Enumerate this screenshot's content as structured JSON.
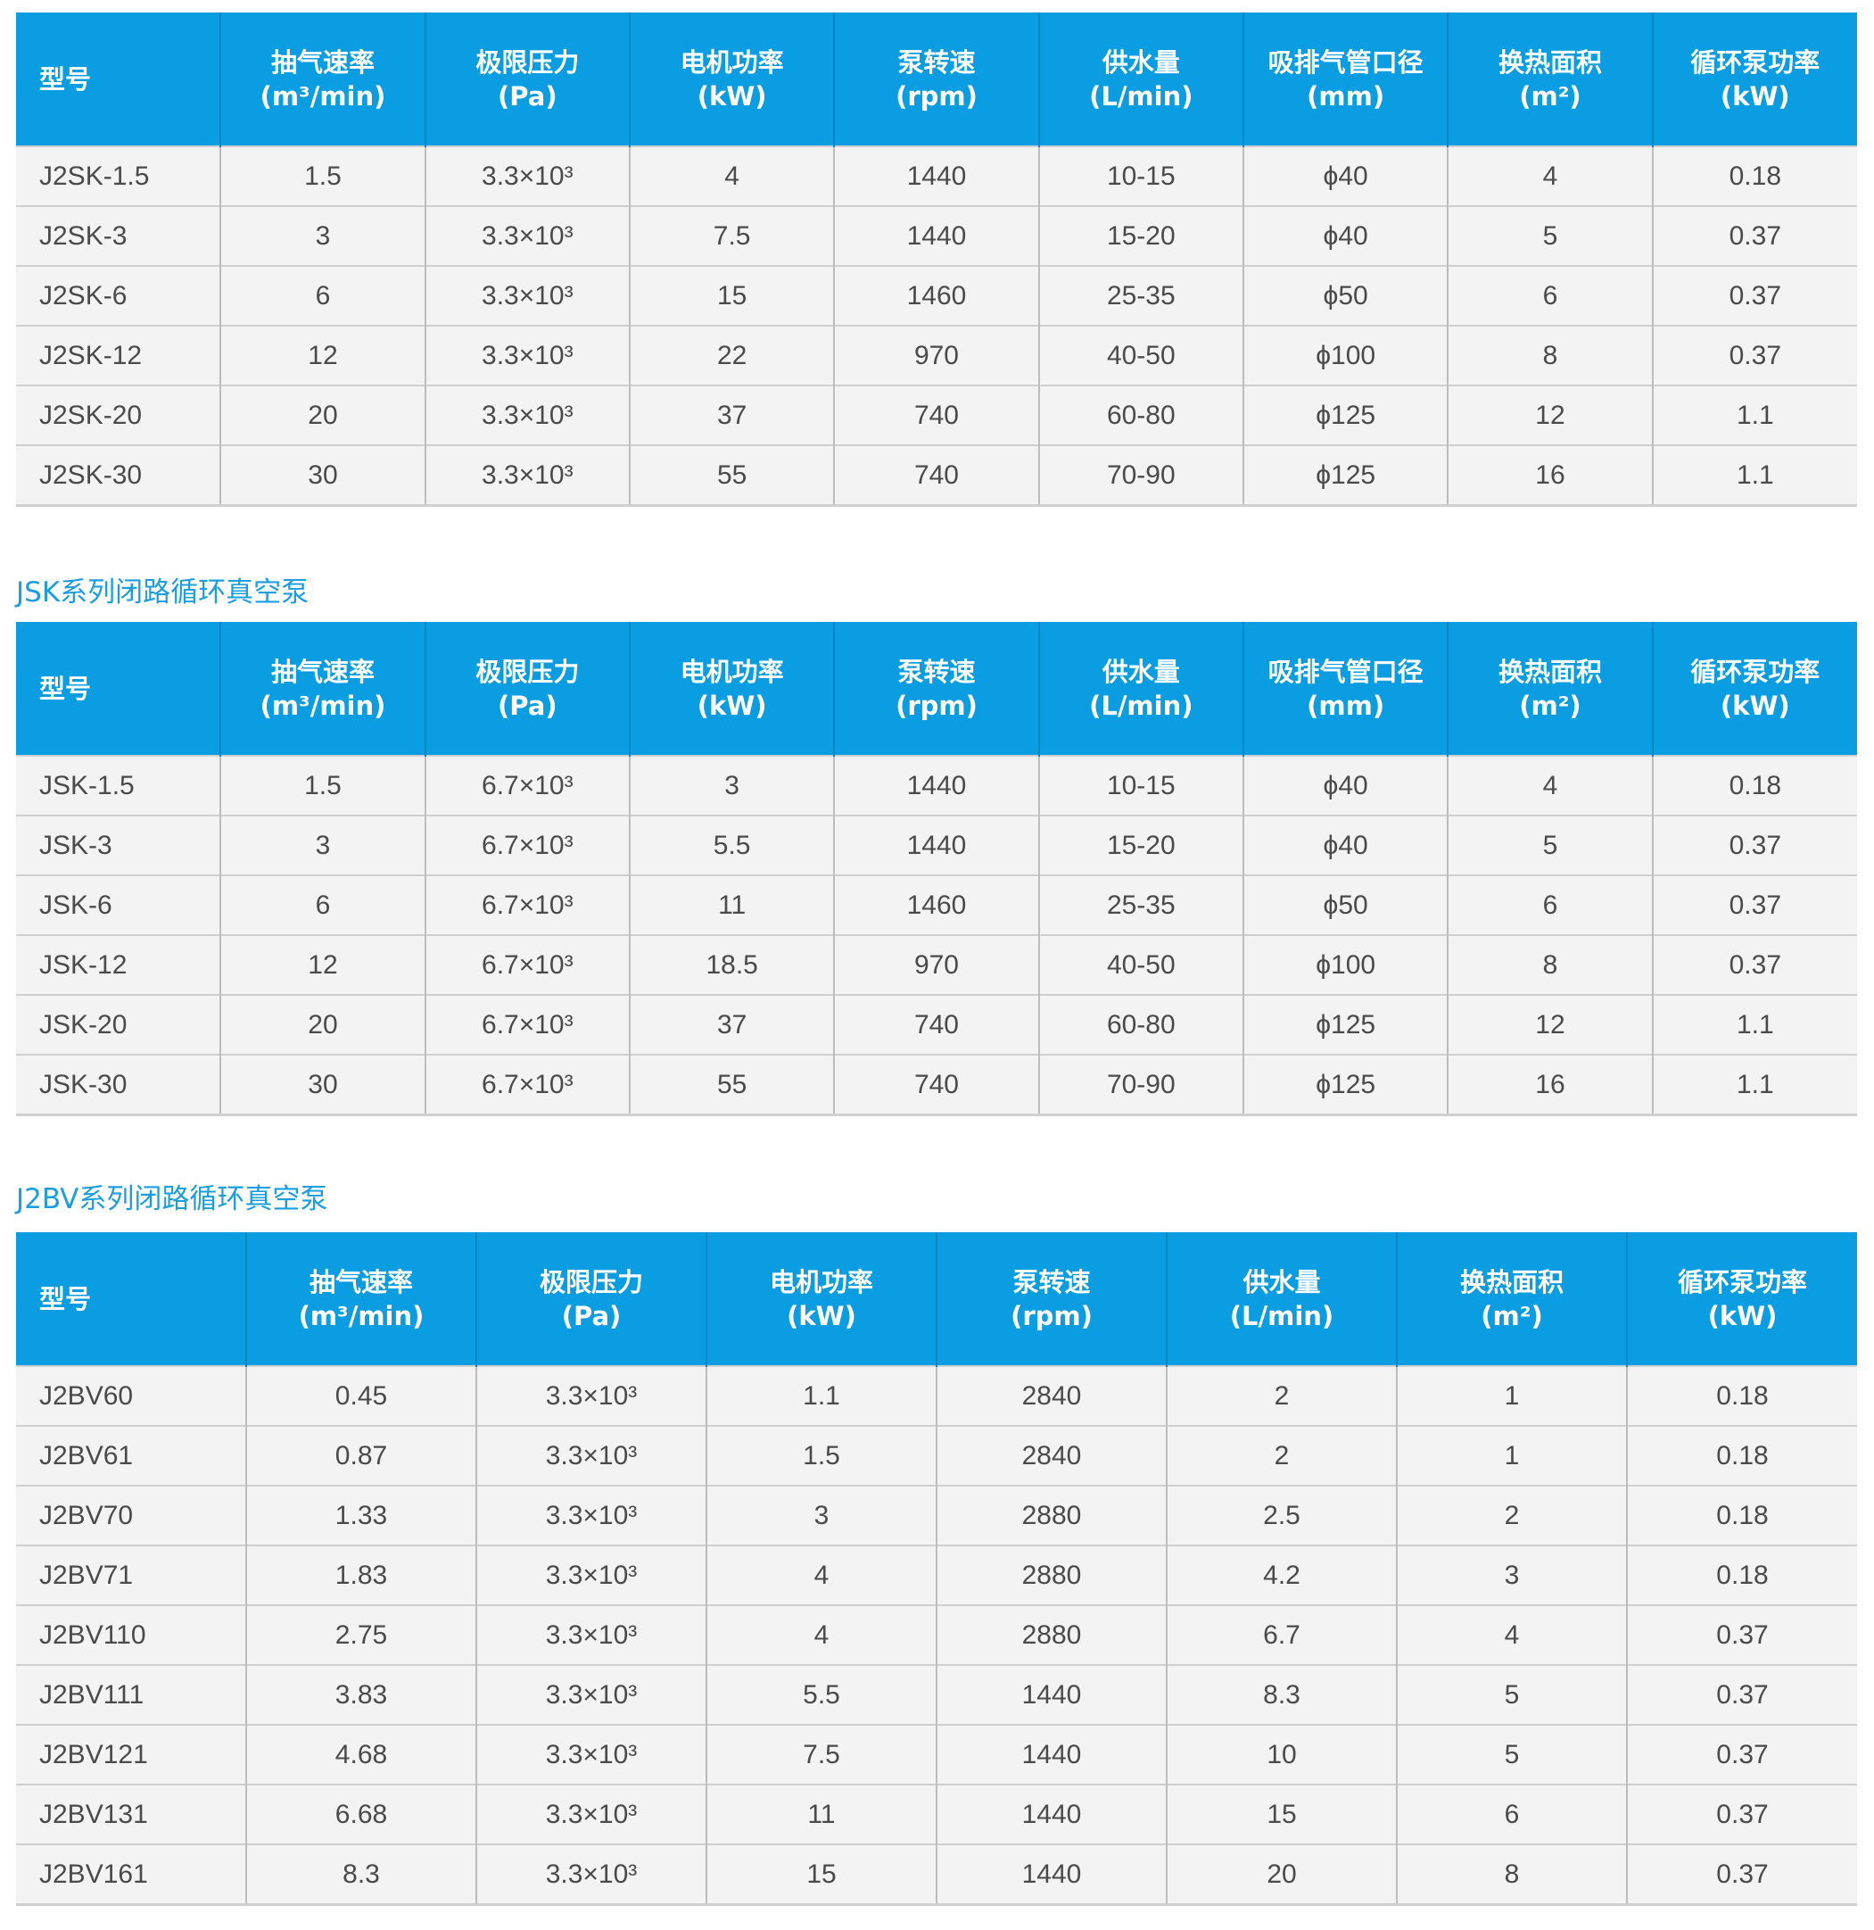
{
  "colors": {
    "header_bg": "#0b9de2",
    "title": "#1a9ee2",
    "row_bg": "#f3f3f3"
  },
  "tables": [
    {
      "title": "",
      "headers": [
        [
          "型号",
          ""
        ],
        [
          "抽气速率",
          "(m³/min)"
        ],
        [
          "极限压力",
          "(Pa)"
        ],
        [
          "电机功率",
          "(kW)"
        ],
        [
          "泵转速",
          "(rpm)"
        ],
        [
          "供水量",
          "(L/min)"
        ],
        [
          "吸排气管口径",
          "(mm)"
        ],
        [
          "换热面积",
          "(m²)"
        ],
        [
          "循环泵功率",
          "(kW)"
        ]
      ],
      "rows": [
        [
          "J2SK-1.5",
          "1.5",
          "3.3×10³",
          "4",
          "1440",
          "10-15",
          "ϕ40",
          "4",
          "0.18"
        ],
        [
          "J2SK-3",
          "3",
          "3.3×10³",
          "7.5",
          "1440",
          "15-20",
          "ϕ40",
          "5",
          "0.37"
        ],
        [
          "J2SK-6",
          "6",
          "3.3×10³",
          "15",
          "1460",
          "25-35",
          "ϕ50",
          "6",
          "0.37"
        ],
        [
          "J2SK-12",
          "12",
          "3.3×10³",
          "22",
          "970",
          "40-50",
          "ϕ100",
          "8",
          "0.37"
        ],
        [
          "J2SK-20",
          "20",
          "3.3×10³",
          "37",
          "740",
          "60-80",
          "ϕ125",
          "12",
          "1.1"
        ],
        [
          "J2SK-30",
          "30",
          "3.3×10³",
          "55",
          "740",
          "70-90",
          "ϕ125",
          "16",
          "1.1"
        ]
      ]
    },
    {
      "title": "JSK系列闭路循环真空泵",
      "headers": [
        [
          "型号",
          ""
        ],
        [
          "抽气速率",
          "(m³/min)"
        ],
        [
          "极限压力",
          "(Pa)"
        ],
        [
          "电机功率",
          "(kW)"
        ],
        [
          "泵转速",
          "(rpm)"
        ],
        [
          "供水量",
          "(L/min)"
        ],
        [
          "吸排气管口径",
          "(mm)"
        ],
        [
          "换热面积",
          "(m²)"
        ],
        [
          "循环泵功率",
          "(kW)"
        ]
      ],
      "rows": [
        [
          "JSK-1.5",
          "1.5",
          "6.7×10³",
          "3",
          "1440",
          "10-15",
          "ϕ40",
          "4",
          "0.18"
        ],
        [
          "JSK-3",
          "3",
          "6.7×10³",
          "5.5",
          "1440",
          "15-20",
          "ϕ40",
          "5",
          "0.37"
        ],
        [
          "JSK-6",
          "6",
          "6.7×10³",
          "11",
          "1460",
          "25-35",
          "ϕ50",
          "6",
          "0.37"
        ],
        [
          "JSK-12",
          "12",
          "6.7×10³",
          "18.5",
          "970",
          "40-50",
          "ϕ100",
          "8",
          "0.37"
        ],
        [
          "JSK-20",
          "20",
          "6.7×10³",
          "37",
          "740",
          "60-80",
          "ϕ125",
          "12",
          "1.1"
        ],
        [
          "JSK-30",
          "30",
          "6.7×10³",
          "55",
          "740",
          "70-90",
          "ϕ125",
          "16",
          "1.1"
        ]
      ]
    },
    {
      "title": "J2BV系列闭路循环真空泵",
      "headers": [
        [
          "型号",
          ""
        ],
        [
          "抽气速率",
          "(m³/min)"
        ],
        [
          "极限压力",
          "(Pa)"
        ],
        [
          "电机功率",
          "(kW)"
        ],
        [
          "泵转速",
          "(rpm)"
        ],
        [
          "供水量",
          "(L/min)"
        ],
        [
          "换热面积",
          "(m²)"
        ],
        [
          "循环泵功率",
          "(kW)"
        ]
      ],
      "rows": [
        [
          "J2BV60",
          "0.45",
          "3.3×10³",
          "1.1",
          "2840",
          "2",
          "1",
          "0.18"
        ],
        [
          "J2BV61",
          "0.87",
          "3.3×10³",
          "1.5",
          "2840",
          "2",
          "1",
          "0.18"
        ],
        [
          "J2BV70",
          "1.33",
          "3.3×10³",
          "3",
          "2880",
          "2.5",
          "2",
          "0.18"
        ],
        [
          "J2BV71",
          "1.83",
          "3.3×10³",
          "4",
          "2880",
          "4.2",
          "3",
          "0.18"
        ],
        [
          "J2BV110",
          "2.75",
          "3.3×10³",
          "4",
          "2880",
          "6.7",
          "4",
          "0.37"
        ],
        [
          "J2BV111",
          "3.83",
          "3.3×10³",
          "5.5",
          "1440",
          "8.3",
          "5",
          "0.37"
        ],
        [
          "J2BV121",
          "4.68",
          "3.3×10³",
          "7.5",
          "1440",
          "10",
          "5",
          "0.37"
        ],
        [
          "J2BV131",
          "6.68",
          "3.3×10³",
          "11",
          "1440",
          "15",
          "6",
          "0.37"
        ],
        [
          "J2BV161",
          "8.3",
          "3.3×10³",
          "15",
          "1440",
          "20",
          "8",
          "0.37"
        ]
      ]
    }
  ]
}
